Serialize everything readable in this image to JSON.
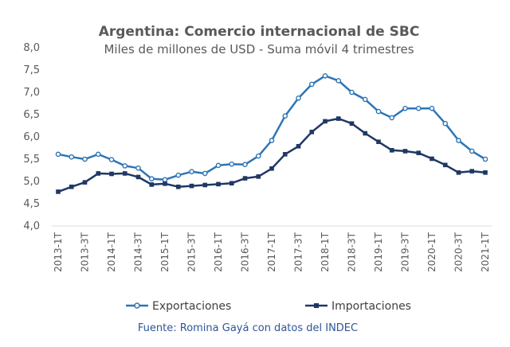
{
  "chart_data": {
    "type": "line",
    "title": "Argentina: Comercio internacional de SBC",
    "subtitle": "Miles de millones de USD - Suma móvil 4 trimestres",
    "xlabel": "",
    "ylabel": "",
    "ylim": [
      4.0,
      8.0
    ],
    "yticks": [
      "8,0",
      "7,5",
      "7,0",
      "6,5",
      "6,0",
      "5,5",
      "5,0",
      "4,5",
      "4,0"
    ],
    "yticks_values": [
      8.0,
      7.5,
      7.0,
      6.5,
      6.0,
      5.5,
      5.0,
      4.5,
      4.0
    ],
    "categories": [
      "2013-1T",
      "2013-2T",
      "2013-3T",
      "2013-4T",
      "2014-1T",
      "2014-2T",
      "2014-3T",
      "2014-4T",
      "2015-1T",
      "2015-2T",
      "2015-3T",
      "2015-4T",
      "2016-1T",
      "2016-2T",
      "2016-3T",
      "2016-4T",
      "2017-1T",
      "2017-2T",
      "2017-3T",
      "2017-4T",
      "2018-1T",
      "2018-2T",
      "2018-3T",
      "2018-4T",
      "2019-1T",
      "2019-2T",
      "2019-3T",
      "2019-4T",
      "2020-1T",
      "2020-2T",
      "2020-3T",
      "2020-4T",
      "2021-1T"
    ],
    "tick_labels": [
      "2013-1T",
      "2013-3T",
      "2014-1T",
      "2014-3T",
      "2015-1T",
      "2015-3T",
      "2016-1T",
      "2016-3T",
      "2017-1T",
      "2017-3T",
      "2018-1T",
      "2018-3T",
      "2019-1T",
      "2019-3T",
      "2020-1T",
      "2020-3T",
      "2021-1T"
    ],
    "series": [
      {
        "name": "Exportaciones",
        "color": "#2e75b6",
        "marker": "circle",
        "values": [
          5.61,
          5.55,
          5.5,
          5.61,
          5.49,
          5.35,
          5.3,
          5.06,
          5.04,
          5.14,
          5.22,
          5.18,
          5.36,
          5.39,
          5.38,
          5.57,
          5.92,
          6.47,
          6.87,
          7.18,
          7.37,
          7.26,
          7.0,
          6.84,
          6.57,
          6.43,
          6.64,
          6.64,
          6.64,
          6.3,
          5.92,
          5.68,
          5.5
        ]
      },
      {
        "name": "Importaciones",
        "color": "#1f3864",
        "marker": "square",
        "values": [
          4.77,
          4.88,
          4.98,
          5.18,
          5.17,
          5.18,
          5.1,
          4.93,
          4.95,
          4.88,
          4.9,
          4.92,
          4.94,
          4.96,
          5.07,
          5.11,
          5.29,
          5.61,
          5.79,
          6.11,
          6.35,
          6.41,
          6.3,
          6.08,
          5.89,
          5.7,
          5.68,
          5.64,
          5.51,
          5.37,
          5.2,
          5.23,
          5.2
        ]
      }
    ],
    "grid": false,
    "legend_position": "bottom",
    "source": "Fuente: Romina Gayá con datos del INDEC"
  }
}
